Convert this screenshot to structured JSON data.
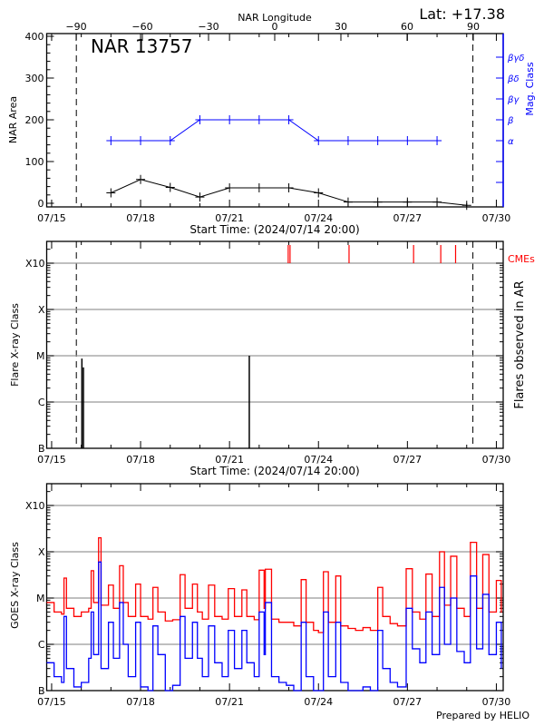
{
  "header": {
    "lat_label": "Lat: +17.38",
    "region_title": "NAR 13757",
    "footer": "Prepared by HELIO"
  },
  "colors": {
    "area": "#000000",
    "mag_class": "#0000ff",
    "cme": "#ff0000",
    "goes_long": "#ff0000",
    "goes_short": "#0000ff",
    "grid": "#999999"
  },
  "chart_data": [
    {
      "type": "line",
      "top_xlabel": "NAR Longitude",
      "top_ticks": [
        "-90",
        "-60",
        "-30",
        "0",
        "30",
        "60",
        "90"
      ],
      "xlabel": "Start Time: (2024/07/14 20:00)",
      "x_ticks": [
        "07/15",
        "07/18",
        "07/21",
        "07/24",
        "07/27",
        "07/30"
      ],
      "xlim": [
        "2024-07-14 20:00",
        "2024-07-30 05:00"
      ],
      "ylabel": "NAR Area",
      "y_ticks": [
        "0",
        "100",
        "200",
        "300",
        "400"
      ],
      "ylim": [
        0,
        400
      ],
      "y2label": "Mag. Class",
      "y2_ticks": [
        "α",
        "β",
        "βγ",
        "βδ",
        "βγδ"
      ],
      "limb_lines": [
        "2024-07-15 20:00",
        "2024-07-29 05:00"
      ],
      "series": [
        {
          "key": "area",
          "x": [
            "2024-07-17",
            "2024-07-18",
            "2024-07-19",
            "2024-07-20",
            "2024-07-21",
            "2024-07-22",
            "2024-07-23",
            "2024-07-24",
            "2024-07-25",
            "2024-07-26",
            "2024-07-27",
            "2024-07-28",
            "2024-07-29"
          ],
          "values": [
            25,
            57,
            38,
            15,
            37,
            37,
            37,
            25,
            3,
            3,
            3,
            3,
            -5
          ]
        },
        {
          "key": "mag_class",
          "x": [
            "2024-07-17",
            "2024-07-18",
            "2024-07-19",
            "2024-07-20",
            "2024-07-21",
            "2024-07-22",
            "2024-07-23",
            "2024-07-24",
            "2024-07-25",
            "2024-07-26",
            "2024-07-27",
            "2024-07-28"
          ],
          "values": [
            "α",
            "α",
            "α",
            "β",
            "β",
            "β",
            "β",
            "α",
            "α",
            "α",
            "α",
            "α"
          ]
        }
      ]
    },
    {
      "type": "bar",
      "xlabel": "Start Time: (2024/07/14 20:00)",
      "x_ticks": [
        "07/15",
        "07/18",
        "07/21",
        "07/24",
        "07/27",
        "07/30"
      ],
      "ylabel": "Flare X-ray Class",
      "y_ticks": [
        "B",
        "C",
        "M",
        "X",
        "X10"
      ],
      "yscale": "log",
      "y2label": "Flares observed in AR",
      "cme_label": "CMEs",
      "grid": true,
      "limb_lines": [
        "2024-07-15 20:00",
        "2024-07-29 05:00"
      ],
      "flares": [
        {
          "x": "2024-07-16 00:30",
          "class": "C8.7"
        },
        {
          "x": "2024-07-16 01:45",
          "class": "C5.6"
        },
        {
          "x": "2024-07-21 16:00",
          "class": "M1.0"
        }
      ],
      "cmes": [
        "2024-07-22 23:30",
        "2024-07-23 01:00",
        "2024-07-25 00:45",
        "2024-07-27 05:00",
        "2024-07-28 03:00",
        "2024-07-28 15:00"
      ]
    },
    {
      "type": "line",
      "x_ticks": [
        "07/15",
        "07/18",
        "07/21",
        "07/24",
        "07/27",
        "07/30"
      ],
      "ylabel": "GOES X-ray Class",
      "y_ticks": [
        "B",
        "C",
        "M",
        "X",
        "X10"
      ],
      "yscale": "log",
      "grid": true,
      "x": [
        "07/14 20:00",
        "07/15 02:00",
        "07/15 08:00",
        "07/15 10:00",
        "07/15 12:00",
        "07/15 18:00",
        "07/16 00:00",
        "07/16 06:00",
        "07/16 08:00",
        "07/16 10:00",
        "07/16 14:00",
        "07/16 16:00",
        "07/16 22:00",
        "07/17 02:00",
        "07/17 07:00",
        "07/17 10:00",
        "07/17 14:00",
        "07/17 20:00",
        "07/18 00:00",
        "07/18 06:00",
        "07/18 10:00",
        "07/18 14:00",
        "07/18 20:00",
        "07/19 02:00",
        "07/19 08:00",
        "07/19 12:00",
        "07/19 18:00",
        "07/19 22:00",
        "07/20 02:00",
        "07/20 07:00",
        "07/20 12:00",
        "07/20 18:00",
        "07/20 23:00",
        "07/21 04:00",
        "07/21 10:00",
        "07/21 14:00",
        "07/21 20:00",
        "07/22 00:00",
        "07/22 04:00",
        "07/22 05:00",
        "07/22 10:00",
        "07/22 16:00",
        "07/22 22:00",
        "07/23 04:00",
        "07/23 10:00",
        "07/23 14:00",
        "07/23 20:00",
        "07/24 00:00",
        "07/24 04:00",
        "07/24 08:00",
        "07/24 14:00",
        "07/24 18:00",
        "07/25 00:00",
        "07/25 06:00",
        "07/25 12:00",
        "07/25 18:00",
        "07/26 00:00",
        "07/26 04:00",
        "07/26 10:00",
        "07/26 16:00",
        "07/26 23:00",
        "07/27 04:00",
        "07/27 10:00",
        "07/27 15:00",
        "07/27 20:00",
        "07/28 02:00",
        "07/28 06:00",
        "07/28 11:00",
        "07/28 16:00",
        "07/28 22:00",
        "07/29 03:00",
        "07/29 08:00",
        "07/29 13:00",
        "07/29 18:00",
        "07/30 00:00",
        "07/30 04:00"
      ],
      "series": [
        {
          "key": "goes_long",
          "values": [
            8e-06,
            5e-06,
            4.5e-06,
            2.7e-05,
            6e-06,
            4e-06,
            5e-06,
            6e-06,
            3.9e-05,
            8e-06,
            0.0002,
            7e-06,
            1.9e-05,
            6e-06,
            5e-05,
            8e-06,
            4e-06,
            2e-05,
            4e-06,
            3.5e-06,
            1.7e-05,
            5e-06,
            3.2e-06,
            3.4e-06,
            3.2e-05,
            6e-06,
            2e-05,
            5e-06,
            3.5e-06,
            1.9e-05,
            4e-06,
            3.5e-06,
            1.6e-05,
            4e-06,
            1.5e-05,
            4e-06,
            3.4e-06,
            4e-05,
            6e-06,
            4.2e-05,
            3.5e-06,
            3e-06,
            3e-06,
            2.5e-06,
            2.5e-05,
            3e-06,
            2e-06,
            1.8e-06,
            3.7e-05,
            3e-06,
            3e-05,
            2.5e-06,
            2.2e-06,
            2e-06,
            2.3e-06,
            2e-06,
            1.7e-05,
            4e-06,
            2.8e-06,
            2.5e-06,
            4.3e-05,
            5e-06,
            3.5e-06,
            3.3e-05,
            4e-06,
            0.0001,
            7e-06,
            8e-05,
            6e-06,
            4e-06,
            0.00016,
            6e-06,
            8.7e-05,
            5e-06,
            2.4e-05,
            4.8e-06
          ]
        },
        {
          "key": "goes_short",
          "values": [
            4e-07,
            2e-07,
            1.5e-07,
            4e-06,
            3e-07,
            1.2e-07,
            1.5e-07,
            5e-07,
            5e-06,
            6e-07,
            6e-05,
            3e-07,
            3e-06,
            5e-07,
            8e-06,
            1e-06,
            2e-07,
            3e-06,
            1.2e-07,
            1e-07,
            2.5e-06,
            6e-07,
            1e-07,
            1.3e-07,
            4e-06,
            5e-07,
            3e-06,
            5e-07,
            2e-07,
            2.5e-06,
            4e-07,
            2e-07,
            2e-06,
            3e-07,
            2e-06,
            4e-07,
            2e-07,
            5e-06,
            6e-07,
            8e-06,
            2e-07,
            1.5e-07,
            1.3e-07,
            1e-07,
            3e-06,
            2e-07,
            1e-07,
            1e-07,
            5e-06,
            2e-07,
            3e-06,
            1.5e-07,
            1e-07,
            1e-07,
            1.2e-07,
            1e-07,
            2e-06,
            3e-07,
            1.5e-07,
            1.2e-07,
            6e-06,
            8e-07,
            4e-07,
            5e-06,
            6e-07,
            1.7e-05,
            1e-06,
            1e-05,
            7e-07,
            4e-07,
            3e-05,
            8e-07,
            1.2e-05,
            6e-07,
            3e-06,
            3e-07
          ]
        }
      ]
    }
  ]
}
